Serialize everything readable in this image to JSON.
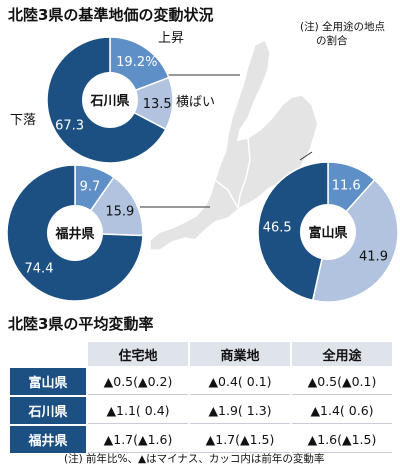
{
  "title": "北陸3県の基準地価の変動状況",
  "note": [
    "(注) 全用途の地点",
    "の割合"
  ],
  "colors": {
    "dark": "#1c5083",
    "mid": "#5f8fc7",
    "light": "#b1c3df",
    "stroke": "#ffffff"
  },
  "chart_data": [
    {
      "type": "pie",
      "prefecture": "石川県",
      "slices": [
        {
          "name": "上昇",
          "value": 19.2,
          "label": "19.2%"
        },
        {
          "name": "横ばい",
          "value": 13.5,
          "label": "13.5"
        },
        {
          "name": "下落",
          "value": 67.3,
          "label": "67.3"
        }
      ]
    },
    {
      "type": "pie",
      "prefecture": "福井県",
      "slices": [
        {
          "name": "上昇",
          "value": 9.7,
          "label": "9.7"
        },
        {
          "name": "横ばい",
          "value": 15.9,
          "label": "15.9"
        },
        {
          "name": "下落",
          "value": 74.4,
          "label": "74.4"
        }
      ]
    },
    {
      "type": "pie",
      "prefecture": "富山県",
      "slices": [
        {
          "name": "上昇",
          "value": 11.6,
          "label": "11.6"
        },
        {
          "name": "横ばい",
          "value": 41.9,
          "label": "41.9"
        },
        {
          "name": "下落",
          "value": 46.5,
          "label": "46.5"
        }
      ]
    }
  ],
  "legend_labels": {
    "up": "上昇",
    "flat": "横ばい",
    "down": "下落"
  },
  "table": {
    "title": "北陸3県の平均変動率",
    "columns": [
      "住宅地",
      "商業地",
      "全用途"
    ],
    "rows": [
      {
        "name": "富山県",
        "values": [
          "▲0.5(▲0.2)",
          "▲0.4( 0.1)",
          "▲0.5(▲0.1)"
        ]
      },
      {
        "name": "石川県",
        "values": [
          "▲1.1( 0.4)",
          "▲1.9( 1.3)",
          "▲1.4( 0.6)"
        ]
      },
      {
        "name": "福井県",
        "values": [
          "▲1.7(▲1.6)",
          "▲1.7(▲1.5)",
          "▲1.6(▲1.5)"
        ]
      }
    ]
  },
  "footnote": "(注) 前年比%、▲はマイナス、カッコ内は前年の変動率"
}
